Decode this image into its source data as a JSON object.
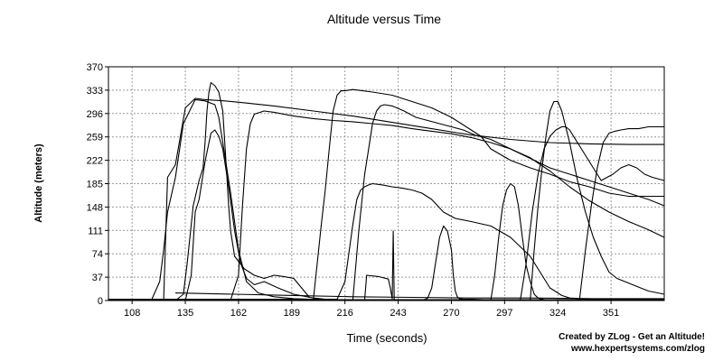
{
  "chart_data": {
    "type": "line",
    "title": "Altitude versus Time",
    "xlabel": "Time (seconds)",
    "ylabel": "Altitude (meters)",
    "xlim": [
      96,
      378
    ],
    "ylim": [
      0,
      370
    ],
    "xticks": [
      108,
      135,
      162,
      189,
      216,
      243,
      270,
      297,
      324,
      351
    ],
    "yticks": [
      0,
      37,
      74,
      111,
      148,
      185,
      222,
      259,
      296,
      333,
      370
    ],
    "grid": true,
    "series": [
      {
        "x": [
          96,
          108,
          118,
          122,
          124,
          126,
          130,
          134,
          140,
          145,
          150,
          152,
          154,
          158,
          162,
          166,
          172,
          180,
          190,
          198,
          203,
          210
        ],
        "y": [
          2,
          2,
          2,
          30,
          80,
          140,
          195,
          280,
          318,
          316,
          310,
          290,
          250,
          170,
          80,
          30,
          12,
          6,
          3,
          2,
          1,
          1
        ]
      },
      {
        "x": [
          96,
          120,
          124,
          126,
          130,
          135,
          140,
          145,
          155,
          165,
          180,
          200,
          220,
          240,
          260,
          280,
          300,
          320,
          340,
          360,
          378
        ],
        "y": [
          1,
          1,
          1,
          195,
          215,
          305,
          320,
          318,
          316,
          313,
          308,
          300,
          292,
          282,
          272,
          262,
          255,
          250,
          248,
          247,
          247
        ]
      },
      {
        "x": [
          96,
          130,
          134,
          136,
          139,
          142,
          144,
          145,
          146,
          147,
          148,
          150,
          152,
          154,
          155,
          156,
          157,
          158,
          160,
          165,
          170,
          175,
          180,
          185,
          190,
          194,
          198
        ],
        "y": [
          0,
          0,
          10,
          60,
          150,
          190,
          210,
          250,
          300,
          330,
          345,
          340,
          330,
          300,
          250,
          200,
          150,
          110,
          70,
          50,
          40,
          35,
          40,
          38,
          35,
          20,
          5
        ]
      },
      {
        "x": [
          96,
          135,
          138,
          140,
          142,
          145,
          148,
          150,
          152,
          154,
          157,
          160,
          163,
          166,
          170,
          175,
          182,
          190,
          200,
          206,
          210
        ],
        "y": [
          0,
          0,
          40,
          140,
          160,
          220,
          265,
          270,
          260,
          240,
          180,
          110,
          60,
          35,
          25,
          30,
          20,
          10,
          4,
          2,
          1
        ]
      },
      {
        "x": [
          96,
          158,
          162,
          164,
          166,
          168,
          170,
          175,
          180,
          190,
          200,
          210,
          220,
          230,
          240,
          250,
          260,
          270,
          280,
          290,
          300,
          310,
          320,
          330,
          340,
          350,
          360,
          370,
          378
        ],
        "y": [
          1,
          1,
          40,
          150,
          240,
          280,
          295,
          300,
          298,
          292,
          288,
          285,
          283,
          280,
          277,
          272,
          268,
          264,
          258,
          250,
          240,
          226,
          205,
          180,
          158,
          140,
          125,
          112,
          100
        ]
      },
      {
        "x": [
          96,
          200,
          204,
          206,
          208,
          210,
          212,
          214,
          216,
          220,
          225,
          230,
          240,
          250,
          260,
          270,
          280,
          285,
          290,
          300,
          310,
          320,
          330,
          340,
          350,
          360,
          370,
          378
        ],
        "y": [
          2,
          2,
          120,
          175,
          240,
          300,
          325,
          332,
          332,
          334,
          332,
          330,
          325,
          315,
          305,
          290,
          270,
          260,
          240,
          222,
          210,
          200,
          188,
          180,
          170,
          165,
          165,
          165
        ]
      },
      {
        "x": [
          96,
          220,
          223,
          225,
          226,
          228,
          230,
          232,
          234,
          236,
          240,
          246,
          252,
          258,
          264,
          270,
          276,
          282,
          290,
          300,
          310,
          320,
          330,
          340,
          350,
          360,
          370,
          378
        ],
        "y": [
          1,
          1,
          110,
          170,
          200,
          240,
          280,
          300,
          308,
          310,
          308,
          300,
          290,
          285,
          280,
          275,
          270,
          262,
          255,
          240,
          225,
          210,
          200,
          190,
          180,
          170,
          160,
          150
        ]
      },
      {
        "x": [
          96,
          212,
          216,
          220,
          222,
          224,
          226,
          228,
          230,
          235,
          240,
          245,
          250,
          255,
          260,
          266,
          272,
          280,
          290,
          300,
          310,
          316,
          320,
          326,
          330,
          336,
          340,
          346,
          350,
          356,
          360,
          366,
          370,
          378
        ],
        "y": [
          2,
          2,
          30,
          120,
          160,
          175,
          180,
          183,
          185,
          183,
          180,
          178,
          175,
          170,
          160,
          140,
          130,
          125,
          118,
          100,
          70,
          40,
          20,
          8,
          4,
          3,
          3,
          2,
          2,
          2,
          2,
          1,
          1,
          1
        ]
      },
      {
        "x": [
          96,
          290,
          292,
          294,
          296,
          298,
          300,
          302,
          304,
          306,
          308,
          310,
          312,
          314,
          316,
          318,
          320,
          322,
          324,
          326,
          328,
          330,
          334,
          338,
          342,
          346,
          350,
          354,
          358,
          364,
          370,
          378
        ],
        "y": [
          1,
          1,
          40,
          100,
          150,
          175,
          185,
          180,
          150,
          100,
          55,
          30,
          10,
          4,
          2,
          1,
          1,
          1,
          1,
          1,
          1,
          1,
          1,
          1,
          1,
          1,
          1,
          1,
          1,
          1,
          1,
          1
        ]
      },
      {
        "x": [
          96,
          310,
          312,
          314,
          316,
          318,
          320,
          322,
          324,
          326,
          330,
          334,
          338,
          342,
          346,
          350,
          354,
          358,
          362,
          366,
          370,
          378
        ],
        "y": [
          1,
          1,
          80,
          150,
          210,
          260,
          300,
          315,
          315,
          300,
          250,
          190,
          140,
          100,
          70,
          45,
          35,
          30,
          25,
          20,
          15,
          10
        ]
      },
      {
        "x": [
          96,
          305,
          308,
          311,
          314,
          317,
          320,
          323,
          326,
          328,
          330,
          334,
          340,
          346,
          352,
          356,
          360,
          364,
          368,
          372,
          378
        ],
        "y": [
          1,
          1,
          60,
          140,
          200,
          240,
          260,
          270,
          275,
          275,
          270,
          250,
          220,
          190,
          200,
          210,
          215,
          210,
          200,
          195,
          190
        ]
      },
      {
        "x": [
          96,
          335,
          338,
          341,
          344,
          347,
          350,
          353,
          356,
          360,
          365,
          370,
          378
        ],
        "y": [
          1,
          1,
          80,
          150,
          210,
          250,
          265,
          268,
          270,
          272,
          272,
          275,
          275
        ]
      },
      {
        "x": [
          96,
          256,
          258,
          260,
          262,
          264,
          266,
          268,
          270,
          271,
          272,
          273,
          274,
          276,
          280,
          290,
          300,
          310,
          320,
          330,
          340,
          350,
          360,
          370,
          378
        ],
        "y": [
          1,
          1,
          4,
          20,
          60,
          100,
          118,
          110,
          80,
          40,
          15,
          6,
          3,
          2,
          2,
          1,
          1,
          1,
          1,
          1,
          1,
          1,
          1,
          1,
          1
        ]
      },
      {
        "x": [
          96,
          226,
          227,
          233,
          238,
          239,
          240,
          240.5,
          241,
          378
        ],
        "y": [
          1,
          1,
          40,
          38,
          34,
          20,
          3,
          110,
          1,
          1
        ]
      },
      {
        "x": [
          130,
          160,
          190,
          220,
          250,
          280,
          310,
          340,
          378
        ],
        "y": [
          12,
          10,
          8,
          6,
          5,
          4,
          4,
          3,
          3
        ]
      }
    ]
  },
  "credit": {
    "line1": "Created by ZLog - Get an Altitude!",
    "line2": "www.hexpertsystems.com/zlog"
  }
}
